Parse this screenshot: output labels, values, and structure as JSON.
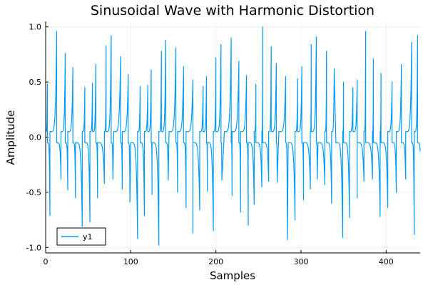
{
  "chart_data": {
    "type": "line",
    "title": "Sinusoidal Wave with Harmonic Distortion",
    "xlabel": "Samples",
    "ylabel": "Amplitude",
    "xlim": [
      0,
      440
    ],
    "ylim": [
      -1.05,
      1.05
    ],
    "x_ticks": [
      0,
      100,
      200,
      300,
      400
    ],
    "y_ticks": [
      -1.0,
      -0.5,
      0.0,
      0.5,
      1.0
    ],
    "x_tick_labels": [
      "0",
      "100",
      "200",
      "300",
      "400"
    ],
    "y_tick_labels": [
      "-1.0",
      "-0.5",
      "0.0",
      "0.5",
      "1.0"
    ],
    "grid": true,
    "legend_position": "bottom-left",
    "series": [
      {
        "name": "y1",
        "color": "#009AFA",
        "n_samples": 440,
        "shape": "arch pattern: upper arches rising from ~0.05 into peaks, lower arches from ~-0.05 into troughs, alternating roughly every 9 samples",
        "peaks": [
          [
            2,
            0.48
          ],
          [
            13,
            0.96
          ],
          [
            23,
            0.76
          ],
          [
            32,
            0.63
          ],
          [
            46,
            0.45
          ],
          [
            55,
            0.49
          ],
          [
            59,
            0.66
          ],
          [
            71,
            0.83
          ],
          [
            77,
            0.92
          ],
          [
            88,
            0.73
          ],
          [
            97,
            0.57
          ],
          [
            111,
            0.46
          ],
          [
            120,
            0.47
          ],
          [
            124,
            0.61
          ],
          [
            136,
            0.78
          ],
          [
            141,
            0.88
          ],
          [
            153,
            0.81
          ],
          [
            162,
            0.64
          ],
          [
            173,
            0.52
          ],
          [
            185,
            0.46
          ],
          [
            189,
            0.55
          ],
          [
            200,
            0.72
          ],
          [
            206,
            0.84
          ],
          [
            218,
            0.9
          ],
          [
            227,
            0.69
          ],
          [
            236,
            0.56
          ],
          [
            247,
            0.48
          ],
          [
            255,
            1.0
          ],
          [
            265,
            0.82
          ],
          [
            271,
            0.67
          ],
          [
            282,
            0.55
          ],
          [
            296,
            0.53
          ],
          [
            301,
            0.64
          ],
          [
            312,
            0.84
          ],
          [
            318,
            0.91
          ],
          [
            330,
            0.78
          ],
          [
            339,
            0.62
          ],
          [
            350,
            0.5
          ],
          [
            361,
            0.45
          ],
          [
            366,
            0.52
          ],
          [
            376,
            0.96
          ],
          [
            385,
            0.71
          ],
          [
            394,
            0.58
          ],
          [
            407,
            0.5
          ],
          [
            418,
            0.66
          ],
          [
            430,
            0.86
          ],
          [
            437,
            0.92
          ]
        ],
        "troughs": [
          [
            5,
            -0.71
          ],
          [
            18,
            -0.38
          ],
          [
            26,
            -0.48
          ],
          [
            35,
            -0.55
          ],
          [
            43,
            -0.81
          ],
          [
            52,
            -0.77
          ],
          [
            61,
            -0.55
          ],
          [
            69,
            -0.42
          ],
          [
            79,
            -0.38
          ],
          [
            90,
            -0.47
          ],
          [
            99,
            -0.59
          ],
          [
            108,
            -0.92
          ],
          [
            116,
            -0.71
          ],
          [
            125,
            -0.52
          ],
          [
            133,
            -0.98
          ],
          [
            144,
            -0.39
          ],
          [
            155,
            -0.5
          ],
          [
            165,
            -0.64
          ],
          [
            173,
            -0.87
          ],
          [
            181,
            -0.66
          ],
          [
            190,
            -0.49
          ],
          [
            197,
            -0.85
          ],
          [
            207,
            -0.39
          ],
          [
            219,
            -0.53
          ],
          [
            229,
            -0.68
          ],
          [
            238,
            -0.8
          ],
          [
            245,
            -0.61
          ],
          [
            254,
            -0.45
          ],
          [
            262,
            -0.4
          ],
          [
            272,
            -0.41
          ],
          [
            284,
            -0.93
          ],
          [
            293,
            -0.75
          ],
          [
            303,
            -0.57
          ],
          [
            311,
            -0.47
          ],
          [
            319,
            -0.38
          ],
          [
            328,
            -0.43
          ],
          [
            336,
            -0.6
          ],
          [
            349,
            -0.91
          ],
          [
            357,
            -0.73
          ],
          [
            366,
            -0.55
          ],
          [
            374,
            -0.4
          ],
          [
            384,
            -0.38
          ],
          [
            393,
            -0.72
          ],
          [
            402,
            -0.64
          ],
          [
            412,
            -0.5
          ],
          [
            423,
            -0.38
          ],
          [
            433,
            -0.88
          ],
          [
            440,
            -0.13
          ]
        ]
      }
    ]
  }
}
